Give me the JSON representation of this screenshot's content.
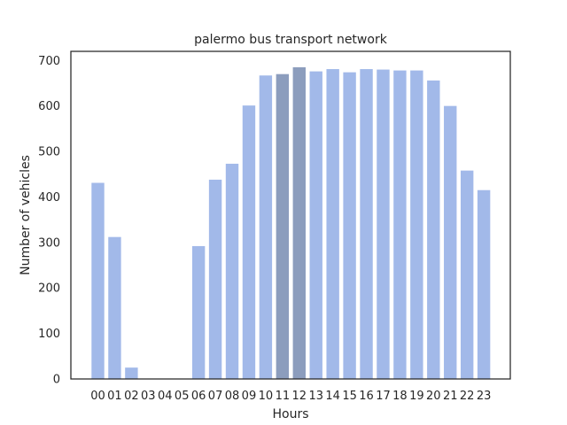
{
  "chart_data": {
    "type": "bar",
    "title": "palermo bus transport network",
    "xlabel": "Hours",
    "ylabel": "Number of vehicles",
    "categories": [
      "00",
      "01",
      "02",
      "03",
      "04",
      "05",
      "06",
      "07",
      "08",
      "09",
      "10",
      "11",
      "12",
      "13",
      "14",
      "15",
      "16",
      "17",
      "18",
      "19",
      "20",
      "21",
      "22",
      "23"
    ],
    "values": [
      431,
      312,
      25,
      0,
      0,
      0,
      292,
      438,
      473,
      601,
      667,
      670,
      685,
      676,
      681,
      674,
      681,
      680,
      678,
      678,
      656,
      600,
      458,
      415
    ],
    "highlighted_categories": [
      "11",
      "12"
    ],
    "ylim": [
      0,
      720
    ],
    "yticks": [
      0,
      100,
      200,
      300,
      400,
      500,
      600,
      700
    ],
    "grid": false,
    "colors": {
      "bar": "#a2b9e9",
      "bar_highlight": "#8c9dbd",
      "axes": "#262626"
    }
  }
}
